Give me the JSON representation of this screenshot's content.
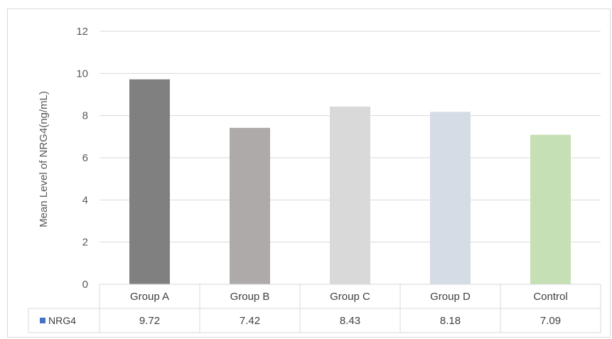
{
  "chart_data": {
    "type": "bar",
    "categories": [
      "Group A",
      "Group B",
      "Group C",
      "Group D",
      "Control"
    ],
    "series": [
      {
        "name": "NRG4",
        "values": [
          9.72,
          7.42,
          8.43,
          8.18,
          7.09
        ],
        "value_labels": [
          "9.72",
          "7.42",
          "8.43",
          "8.18",
          "7.09"
        ],
        "colors": [
          "#808080",
          "#aeaaaa",
          "#d9d9d9",
          "#d6dce5",
          "#c5e0b4"
        ],
        "legend_color": "#4472c4"
      }
    ],
    "ylabel": "Mean Level of NRG4(ng/mL)",
    "ylim": [
      0,
      12
    ],
    "yticks": [
      "0",
      "2",
      "4",
      "6",
      "8",
      "10",
      "12"
    ],
    "ytick_values": [
      0,
      2,
      4,
      6,
      8,
      10,
      12
    ],
    "grid": true,
    "legend": "data-table",
    "data_table": true
  }
}
